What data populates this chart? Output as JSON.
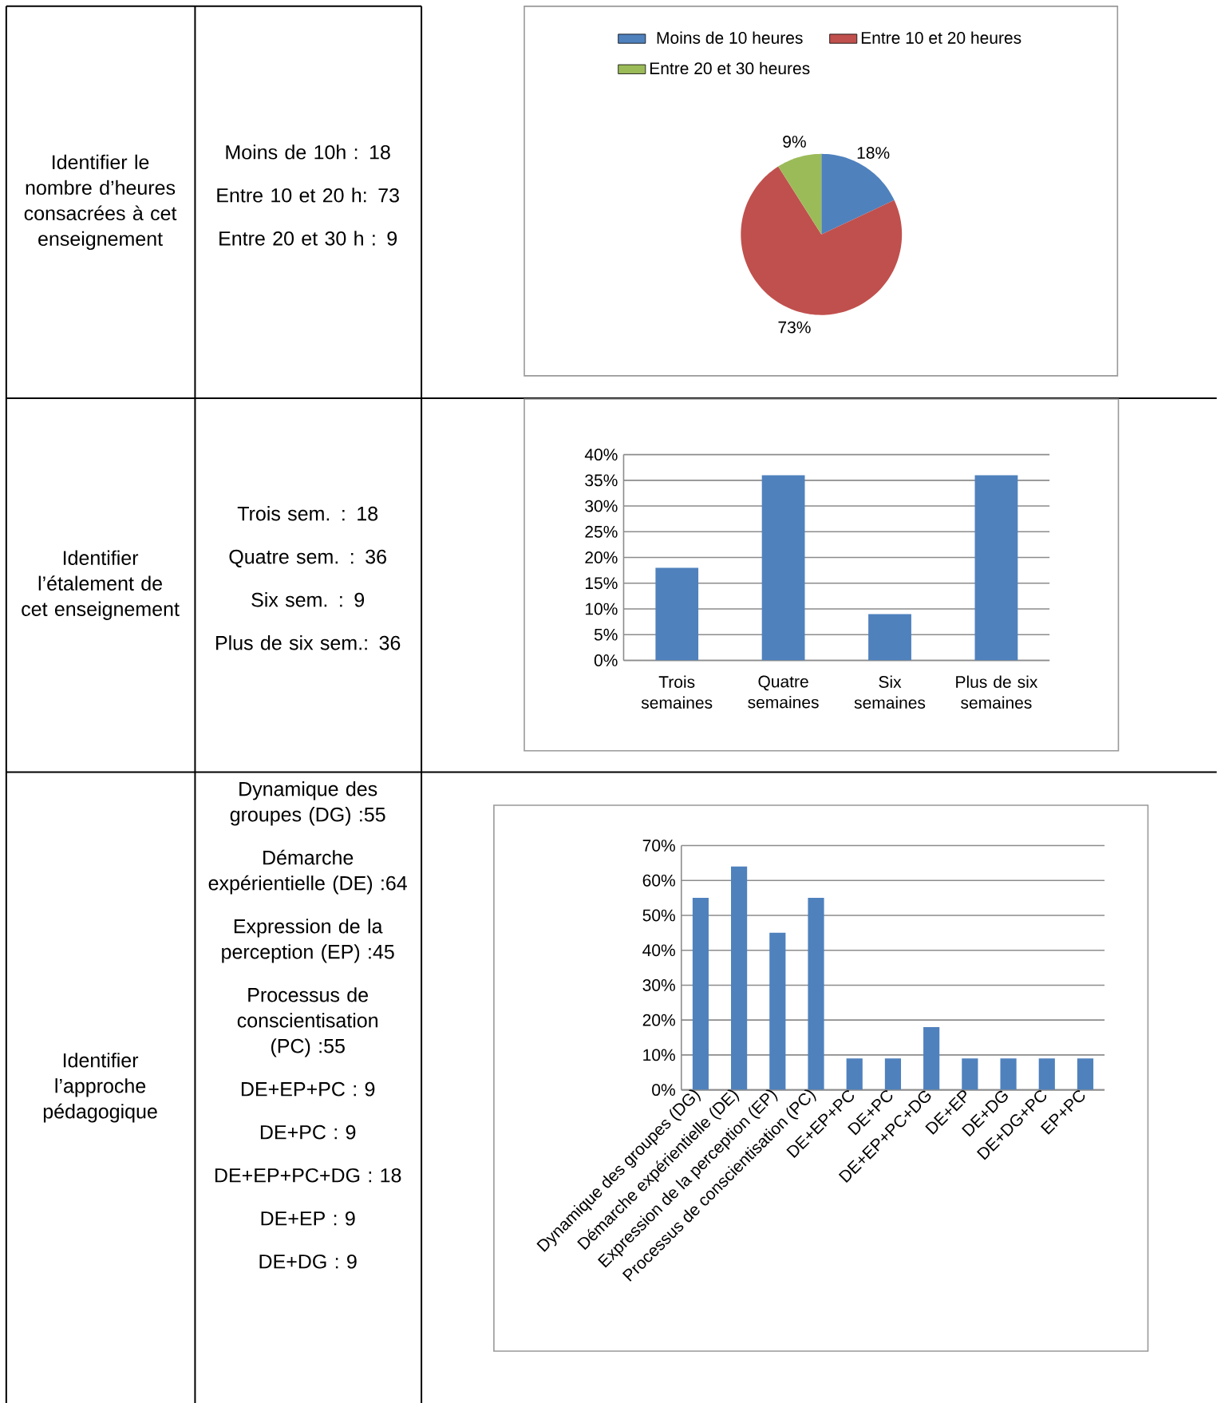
{
  "chart_data": [
    {
      "type": "other",
      "title": "Identifier le nombre d’heures consacrées à cet enseignement",
      "annotations": [
        "Moins de 10h : 18",
        "Entre 10 et 20 h: 73",
        "Entre 20 et 30 h : 9"
      ]
    },
    {
      "type": "pie",
      "categories": [
        "Moins de  10 heures",
        "Entre 10 et 20 heures",
        "Entre 20 et 30 heures"
      ],
      "values": [
        18,
        73,
        9
      ],
      "colors": [
        "#4f81bd",
        "#c0504d",
        "#9bbb59"
      ],
      "value_labels": [
        "18%",
        "73%",
        "9%"
      ],
      "legend": "top"
    },
    {
      "type": "other",
      "title": "Identifier l’étalement de cet enseignement",
      "annotations": [
        "Trois sem. : 18",
        "Quatre sem. : 36",
        "Six sem. : 9",
        "Plus de six sem.: 36"
      ]
    },
    {
      "type": "bar",
      "categories": [
        "Trois semaines",
        "Quatre semaines",
        "Six semaines",
        "Plus de six semaines"
      ],
      "values": [
        18,
        36,
        9,
        36
      ],
      "color": "#4f81bd",
      "ylim": [
        0,
        40
      ],
      "yticks": [
        {
          "value": 0,
          "label": "0%"
        },
        {
          "value": 5,
          "label": "5%"
        },
        {
          "value": 10,
          "label": "10%"
        },
        {
          "value": 15,
          "label": "15%"
        },
        {
          "value": 20,
          "label": "20%"
        },
        {
          "value": 25,
          "label": "25%"
        },
        {
          "value": 30,
          "label": "30%"
        },
        {
          "value": 35,
          "label": "35%"
        },
        {
          "value": 40,
          "label": "40%"
        }
      ],
      "grid": "y"
    },
    {
      "type": "other",
      "title": "Identifier l’approche pédagogique",
      "annotations": [
        "Dynamique des groupes (DG) :55",
        "Démarche expérientielle (DE) :64",
        "Expression de la perception (EP) :45",
        "Processus de conscientisation (PC) :55",
        "DE+EP+PC : 9",
        "DE+PC : 9",
        "DE+EP+PC+DG : 18",
        "DE+EP : 9",
        "DE+DG : 9"
      ]
    },
    {
      "type": "bar",
      "categories": [
        "Dynamique des groupes (DG)",
        "Démarche expérientielle (DE)",
        "Expression de la perception (EP)",
        "Processus de conscientisation (PC)",
        "DE+EP+PC",
        "DE+PC",
        "DE+EP+PC+DG",
        "DE+EP",
        "DE+DG",
        "DE+DG+PC",
        "EP+PC"
      ],
      "values": [
        55,
        64,
        45,
        55,
        9,
        9,
        18,
        9,
        9,
        9,
        9
      ],
      "color": "#4f81bd",
      "ylim": [
        0,
        70
      ],
      "yticks": [
        {
          "value": 0,
          "label": "0%"
        },
        {
          "value": 10,
          "label": "10%"
        },
        {
          "value": 20,
          "label": "20%"
        },
        {
          "value": 30,
          "label": "30%"
        },
        {
          "value": 40,
          "label": "40%"
        },
        {
          "value": 50,
          "label": "50%"
        },
        {
          "value": 60,
          "label": "60%"
        },
        {
          "value": 70,
          "label": "70%"
        }
      ],
      "grid": "y"
    }
  ]
}
